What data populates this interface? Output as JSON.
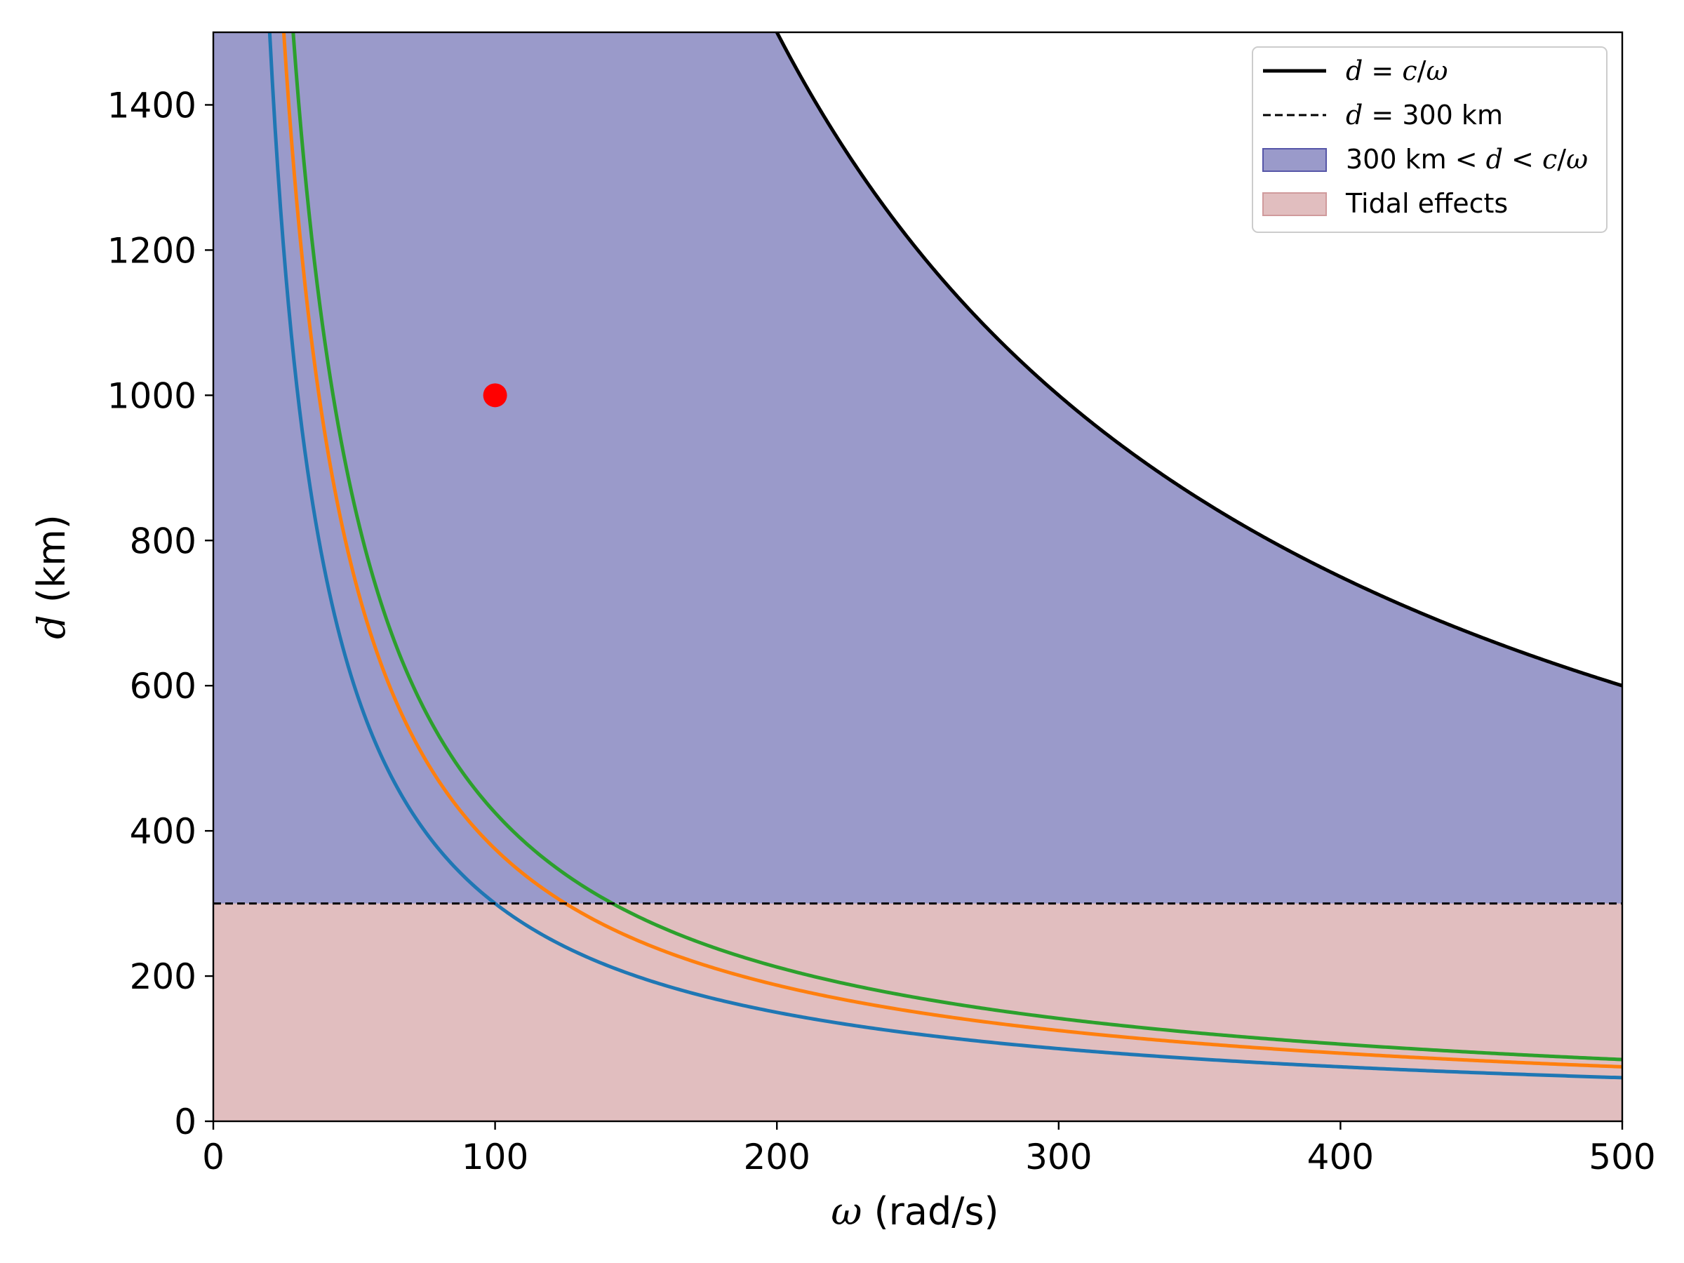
{
  "chart_data": {
    "type": "line",
    "xlabel": {
      "symbol": "ω",
      "unit": " (rad/s)"
    },
    "ylabel": {
      "symbol": "d",
      "unit": " (km)"
    },
    "xlim": [
      0,
      500
    ],
    "ylim": [
      0,
      1500
    ],
    "x_ticks": [
      0,
      100,
      200,
      300,
      400,
      500
    ],
    "y_ticks": [
      0,
      200,
      400,
      600,
      800,
      1000,
      1200,
      1400
    ],
    "grid": false,
    "legend_position": "top-right",
    "bands": [
      {
        "name": "tidal",
        "from": 0,
        "to": 300,
        "color": "#e1bebf"
      },
      {
        "name": "mid",
        "from": 300,
        "upper": "c/ω",
        "color": "#9a9aca"
      }
    ],
    "reference_lines": [
      {
        "name": "d = c/ω",
        "formula": "d = c/ω",
        "c": 300000,
        "style": "solid",
        "color": "#000000"
      },
      {
        "name": "d = 300 km",
        "y": 300,
        "style": "dashed",
        "color": "#000000"
      }
    ],
    "series": [
      {
        "k": 30000,
        "color": "#1f77b4"
      },
      {
        "k": 37500,
        "color": "#ff7f0e"
      },
      {
        "k": 42500,
        "color": "#2ca02c"
      }
    ],
    "series_rule": "d = k/ω",
    "marker": {
      "x": 100,
      "y": 1000,
      "color": "#ff0000"
    },
    "legend": [
      {
        "text": "d = c/ω",
        "type": "solid-line"
      },
      {
        "text": "d = 300 km",
        "type": "dashed-line"
      },
      {
        "text": "300 km < d < c/ω",
        "type": "patch",
        "color": "#9a9aca"
      },
      {
        "text": "Tidal effects",
        "type": "patch",
        "color": "#e1bebf"
      }
    ]
  }
}
